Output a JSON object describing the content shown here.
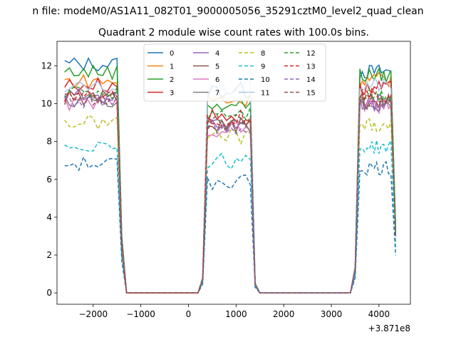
{
  "suptitle": "n file: modeM0/AS1A11_082T01_9000005056_35291cztM0_level2_quad_clean",
  "chart_data": {
    "type": "line",
    "title": "Quadrant 2 module wise count rates with 100.0s bins.",
    "xlabel": "",
    "ylabel": "",
    "offset_label": "+3.871e8",
    "xlim": [
      -2760,
      4660
    ],
    "ylim": [
      -0.6,
      13.3
    ],
    "xticks": [
      -2000,
      -1000,
      0,
      1000,
      2000,
      3000,
      4000
    ],
    "xtick_labels": [
      "−2000",
      "−1000",
      "0",
      "1000",
      "2000",
      "3000",
      "4000"
    ],
    "yticks": [
      0,
      2,
      4,
      6,
      8,
      10,
      12
    ],
    "legend_loc": "upper center",
    "legend_ncol": 4,
    "series": [
      {
        "name": "0",
        "color": "#1f77b4",
        "dash": "solid",
        "levels": [
          12.1,
          10.7,
          11.7
        ]
      },
      {
        "name": "1",
        "color": "#ff7f0e",
        "dash": "solid",
        "levels": [
          11.2,
          10.2,
          11.3
        ]
      },
      {
        "name": "2",
        "color": "#2ca02c",
        "dash": "solid",
        "levels": [
          11.7,
          10.0,
          11.5
        ]
      },
      {
        "name": "3",
        "color": "#d62728",
        "dash": "solid",
        "levels": [
          11.0,
          9.3,
          10.8
        ]
      },
      {
        "name": "4",
        "color": "#9467bd",
        "dash": "solid",
        "levels": [
          10.4,
          9.0,
          10.1
        ]
      },
      {
        "name": "5",
        "color": "#8c564b",
        "dash": "solid",
        "levels": [
          10.3,
          8.9,
          10.2
        ]
      },
      {
        "name": "6",
        "color": "#e377c2",
        "dash": "solid",
        "levels": [
          10.0,
          8.7,
          9.9
        ]
      },
      {
        "name": "7",
        "color": "#7f7f7f",
        "dash": "solid",
        "levels": [
          10.2,
          8.8,
          10.0
        ]
      },
      {
        "name": "8",
        "color": "#bcbd22",
        "dash": "dashed",
        "levels": [
          9.0,
          8.3,
          8.9
        ]
      },
      {
        "name": "9",
        "color": "#17becf",
        "dash": "dashed",
        "levels": [
          7.8,
          7.0,
          7.7
        ]
      },
      {
        "name": "10",
        "color": "#1f77b4",
        "dash": "dashed",
        "levels": [
          6.8,
          5.9,
          6.6
        ]
      },
      {
        "name": "11",
        "color": "#aec7e8",
        "dash": "solid",
        "levels": [
          10.8,
          10.8,
          11.0
        ]
      },
      {
        "name": "12",
        "color": "#2ca02c",
        "dash": "dashed",
        "levels": [
          10.6,
          9.6,
          10.5
        ]
      },
      {
        "name": "13",
        "color": "#d62728",
        "dash": "dashed",
        "levels": [
          10.5,
          9.2,
          10.4
        ]
      },
      {
        "name": "14",
        "color": "#9467bd",
        "dash": "dashed",
        "levels": [
          10.1,
          8.8,
          9.9
        ]
      },
      {
        "name": "15",
        "color": "#8c564b",
        "dash": "dashed",
        "levels": [
          10.3,
          9.0,
          10.1
        ]
      }
    ]
  }
}
